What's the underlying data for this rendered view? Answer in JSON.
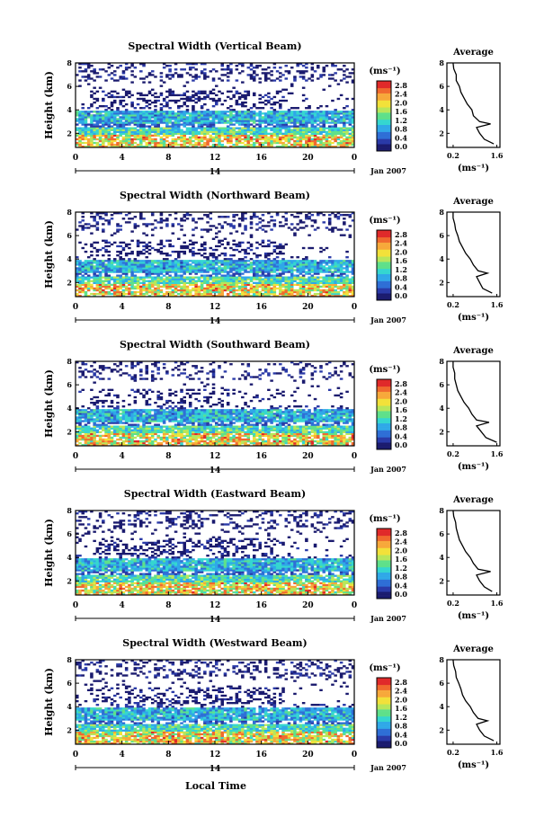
{
  "figure": {
    "xlabel": "Local Time",
    "date_label": "Jan 2007",
    "day_label": "14",
    "colorbar_unit": "(ms⁻¹)",
    "avg_title": "Average",
    "avg_xlabel": "(ms⁻¹)",
    "colormap": [
      "#1a1a6e",
      "#2a3aa8",
      "#2f6fd6",
      "#2fa8e8",
      "#35d6d0",
      "#5fe08a",
      "#b8e65a",
      "#f2e13a",
      "#f7a83a",
      "#f06a2e",
      "#e02a2a"
    ]
  },
  "chart_data": [
    {
      "type": "heatmap",
      "title": "Spectral Width (Vertical Beam)",
      "ylabel": "Height (km)",
      "x_ticks": [
        "0",
        "4",
        "8",
        "12",
        "16",
        "20",
        "0"
      ],
      "y_ticks": [
        "2",
        "4",
        "6",
        "8"
      ],
      "xlim": [
        0,
        24
      ],
      "ylim": [
        0.8,
        8
      ],
      "colorbar": {
        "ticks": [
          "2.8",
          "2.4",
          "2.0",
          "1.6",
          "1.2",
          "0.8",
          "0.4",
          "0.0"
        ],
        "range": [
          0,
          2.8
        ]
      },
      "average": {
        "title": "Average",
        "x_ticks": [
          "0.2",
          "1.6"
        ],
        "y_ticks": [
          "2",
          "4",
          "6",
          "8"
        ],
        "xlim": [
          0,
          1.7
        ],
        "heights": [
          1.1,
          1.5,
          2.0,
          2.5,
          2.8,
          3.0,
          3.5,
          4.0,
          4.5,
          5.0,
          5.5,
          6.0,
          6.5,
          7.0,
          7.5,
          8.0
        ],
        "values": [
          1.5,
          1.2,
          1.05,
          0.95,
          1.4,
          1.05,
          0.85,
          0.8,
          0.65,
          0.55,
          0.45,
          0.4,
          0.3,
          0.3,
          0.22,
          0.2
        ]
      }
    },
    {
      "type": "heatmap",
      "title": "Spectral Width (Northward Beam)",
      "ylabel": "Height (km)",
      "x_ticks": [
        "0",
        "4",
        "8",
        "12",
        "16",
        "20",
        "0"
      ],
      "y_ticks": [
        "2",
        "4",
        "6",
        "8"
      ],
      "xlim": [
        0,
        24
      ],
      "ylim": [
        0.8,
        8
      ],
      "colorbar": {
        "ticks": [
          "2.8",
          "2.4",
          "2.0",
          "1.6",
          "1.2",
          "0.8",
          "0.4",
          "0.0"
        ],
        "range": [
          0,
          2.8
        ]
      },
      "average": {
        "title": "Average",
        "x_ticks": [
          "0.2",
          "1.6"
        ],
        "y_ticks": [
          "2",
          "4",
          "6",
          "8"
        ],
        "xlim": [
          0,
          1.7
        ],
        "heights": [
          1.1,
          1.5,
          2.0,
          2.5,
          2.8,
          3.0,
          3.5,
          4.0,
          4.5,
          5.0,
          5.5,
          6.0,
          6.5,
          7.0,
          7.5,
          8.0
        ],
        "values": [
          1.45,
          1.15,
          1.05,
          0.95,
          1.3,
          1.0,
          0.85,
          0.75,
          0.6,
          0.5,
          0.4,
          0.35,
          0.28,
          0.25,
          0.2,
          0.2
        ]
      }
    },
    {
      "type": "heatmap",
      "title": "Spectral Width (Southward Beam)",
      "ylabel": "Height (km)",
      "x_ticks": [
        "0",
        "4",
        "8",
        "12",
        "16",
        "20",
        "0"
      ],
      "y_ticks": [
        "2",
        "4",
        "6",
        "8"
      ],
      "xlim": [
        0,
        24
      ],
      "ylim": [
        0.8,
        8
      ],
      "colorbar": {
        "ticks": [
          "2.8",
          "2.4",
          "2.0",
          "1.6",
          "1.2",
          "0.8",
          "0.4",
          "0.0"
        ],
        "range": [
          0,
          2.8
        ]
      },
      "average": {
        "title": "Average",
        "x_ticks": [
          "0.2",
          "1.6"
        ],
        "y_ticks": [
          "2",
          "4",
          "6",
          "8"
        ],
        "xlim": [
          0,
          1.7
        ],
        "heights": [
          1.1,
          1.5,
          2.0,
          2.5,
          2.8,
          3.0,
          3.5,
          4.0,
          4.5,
          5.0,
          5.5,
          6.0,
          6.5,
          7.0,
          7.5,
          8.0
        ],
        "values": [
          1.6,
          1.25,
          1.1,
          0.95,
          1.35,
          0.95,
          0.8,
          0.7,
          0.55,
          0.45,
          0.35,
          0.3,
          0.25,
          0.25,
          0.2,
          0.2
        ]
      }
    },
    {
      "type": "heatmap",
      "title": "Spectral Width (Eastward Beam)",
      "ylabel": "Height (km)",
      "x_ticks": [
        "0",
        "4",
        "8",
        "12",
        "16",
        "20",
        "0"
      ],
      "y_ticks": [
        "2",
        "4",
        "6",
        "8"
      ],
      "xlim": [
        0,
        24
      ],
      "ylim": [
        0.8,
        8
      ],
      "colorbar": {
        "ticks": [
          "2.8",
          "2.4",
          "2.0",
          "1.6",
          "1.2",
          "0.8",
          "0.4",
          "0.0"
        ],
        "range": [
          0,
          2.8
        ]
      },
      "average": {
        "title": "Average",
        "x_ticks": [
          "0.2",
          "1.6"
        ],
        "y_ticks": [
          "2",
          "4",
          "6",
          "8"
        ],
        "xlim": [
          0,
          1.7
        ],
        "heights": [
          1.1,
          1.5,
          2.0,
          2.5,
          2.8,
          3.0,
          3.5,
          4.0,
          4.5,
          5.0,
          5.5,
          6.0,
          6.5,
          7.0,
          7.5,
          8.0
        ],
        "values": [
          1.45,
          1.2,
          1.05,
          0.95,
          1.4,
          1.0,
          0.85,
          0.75,
          0.6,
          0.5,
          0.4,
          0.35,
          0.3,
          0.28,
          0.22,
          0.2
        ]
      }
    },
    {
      "type": "heatmap",
      "title": "Spectral Width (Westward Beam)",
      "ylabel": "Height (km)",
      "x_ticks": [
        "0",
        "4",
        "8",
        "12",
        "16",
        "20",
        "0"
      ],
      "y_ticks": [
        "2",
        "4",
        "6",
        "8"
      ],
      "xlim": [
        0,
        24
      ],
      "ylim": [
        0.8,
        8
      ],
      "colorbar": {
        "ticks": [
          "2.8",
          "2.4",
          "2.0",
          "1.6",
          "1.2",
          "0.8",
          "0.4",
          "0.0"
        ],
        "range": [
          0,
          2.8
        ]
      },
      "average": {
        "title": "Average",
        "x_ticks": [
          "0.2",
          "1.6"
        ],
        "y_ticks": [
          "2",
          "4",
          "6",
          "8"
        ],
        "xlim": [
          0,
          1.7
        ],
        "heights": [
          1.1,
          1.5,
          2.0,
          2.5,
          2.8,
          3.0,
          3.5,
          4.0,
          4.5,
          5.0,
          5.5,
          6.0,
          6.5,
          7.0,
          7.5,
          8.0
        ],
        "values": [
          1.5,
          1.2,
          1.05,
          0.95,
          1.3,
          1.0,
          0.85,
          0.75,
          0.6,
          0.5,
          0.45,
          0.38,
          0.3,
          0.28,
          0.22,
          0.2
        ]
      }
    }
  ]
}
